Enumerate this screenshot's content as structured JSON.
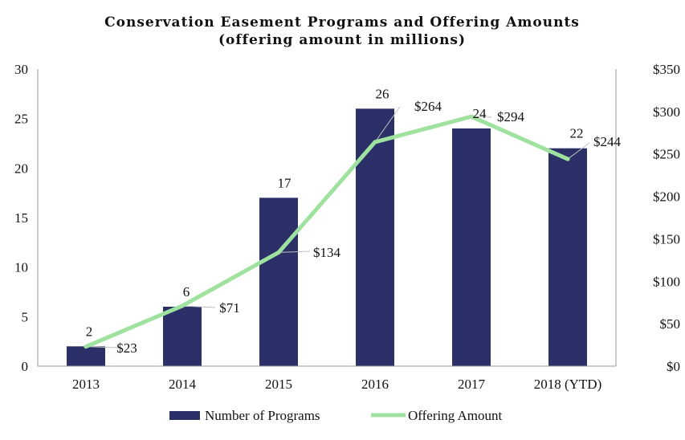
{
  "chart_data": {
    "type": "bar+line",
    "title": "Conservation Easement Programs and Offering Amounts",
    "subtitle": "(offering amount in millions)",
    "categories": [
      "2013",
      "2014",
      "2015",
      "2016",
      "2017",
      "2018 (YTD)"
    ],
    "series": [
      {
        "name": "Number of Programs",
        "type": "bar",
        "axis": "left",
        "values": [
          2,
          6,
          17,
          26,
          24,
          22
        ],
        "labels": [
          "2",
          "6",
          "17",
          "26",
          "24",
          "22"
        ]
      },
      {
        "name": "Offering Amount",
        "type": "line",
        "axis": "right",
        "values": [
          23,
          71,
          134,
          264,
          294,
          244
        ],
        "labels": [
          "$23",
          "$71",
          "$134",
          "$264",
          "$294",
          "$244"
        ]
      }
    ],
    "y_left": {
      "min": 0,
      "max": 30,
      "ticks": [
        "0",
        "5",
        "10",
        "15",
        "20",
        "25",
        "30"
      ]
    },
    "y_right": {
      "min": 0,
      "max": 350,
      "ticks": [
        "$0",
        "$50",
        "$100",
        "$150",
        "$200",
        "$250",
        "$300",
        "$350"
      ]
    },
    "grid": false,
    "legend_position": "bottom",
    "colors": {
      "bar": "#2b3168",
      "line": "#9fe29f",
      "leader": "#bfbfbf",
      "axis": "#999999"
    }
  }
}
